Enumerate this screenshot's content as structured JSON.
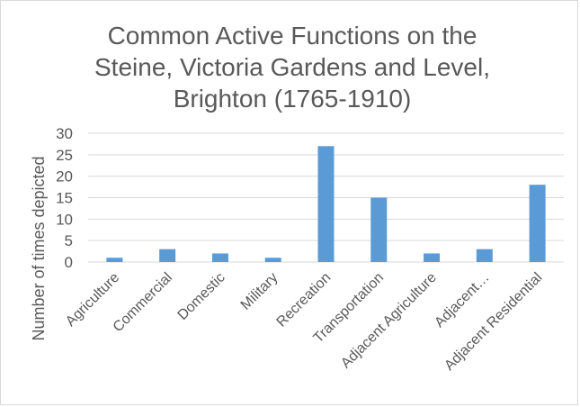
{
  "chart_data": {
    "type": "bar",
    "title_lines": [
      "Common Active Functions on the",
      "Steine, Victoria Gardens and Level,",
      "Brighton (1765-1910)"
    ],
    "xlabel": "",
    "ylabel": "Number of times depicted",
    "ylim": [
      0,
      30
    ],
    "yticks": [
      0,
      5,
      10,
      15,
      20,
      25,
      30
    ],
    "grid": true,
    "bar_color": "#5b9bd5",
    "categories": [
      "Agriculture",
      "Commercial",
      "Domestic",
      "Military",
      "Recreation",
      "Transportation",
      "Adjacent Agriculture",
      "Adjacent…",
      "Adjacent Residential"
    ],
    "values": [
      1,
      3,
      2,
      1,
      27,
      15,
      2,
      3,
      18
    ]
  }
}
